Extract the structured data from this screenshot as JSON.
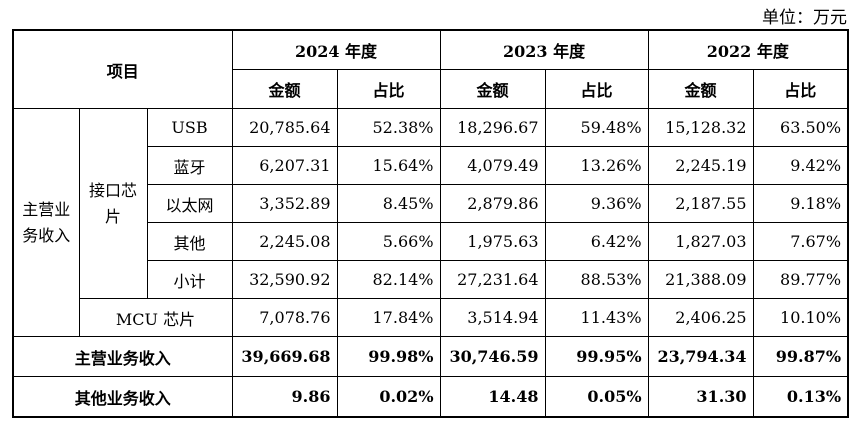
{
  "unit_label": "单位：万元",
  "header": {
    "item": "项目",
    "years": [
      "2024 年度",
      "2023 年度",
      "2022 年度"
    ],
    "amount": "金额",
    "ratio": "占比"
  },
  "groups": {
    "main_revenue": "主营业务收入",
    "interface_chip": "接口芯片"
  },
  "rows": [
    {
      "label": "USB",
      "v": [
        "20,785.64",
        "52.38%",
        "18,296.67",
        "59.48%",
        "15,128.32",
        "63.50%"
      ]
    },
    {
      "label": "蓝牙",
      "v": [
        "6,207.31",
        "15.64%",
        "4,079.49",
        "13.26%",
        "2,245.19",
        "9.42%"
      ]
    },
    {
      "label": "以太网",
      "v": [
        "3,352.89",
        "8.45%",
        "2,879.86",
        "9.36%",
        "2,187.55",
        "9.18%"
      ]
    },
    {
      "label": "其他",
      "v": [
        "2,245.08",
        "5.66%",
        "1,975.63",
        "6.42%",
        "1,827.03",
        "7.67%"
      ]
    },
    {
      "label": "小计",
      "v": [
        "32,590.92",
        "82.14%",
        "27,231.64",
        "88.53%",
        "21,388.09",
        "89.77%"
      ]
    },
    {
      "label": "MCU 芯片",
      "v": [
        "7,078.76",
        "17.84%",
        "3,514.94",
        "11.43%",
        "2,406.25",
        "10.10%"
      ]
    }
  ],
  "totals": [
    {
      "label": "主营业务收入",
      "v": [
        "39,669.68",
        "99.98%",
        "30,746.59",
        "99.95%",
        "23,794.34",
        "99.87%"
      ]
    },
    {
      "label": "其他业务收入",
      "v": [
        "9.86",
        "0.02%",
        "14.48",
        "0.05%",
        "31.30",
        "0.13%"
      ]
    }
  ]
}
